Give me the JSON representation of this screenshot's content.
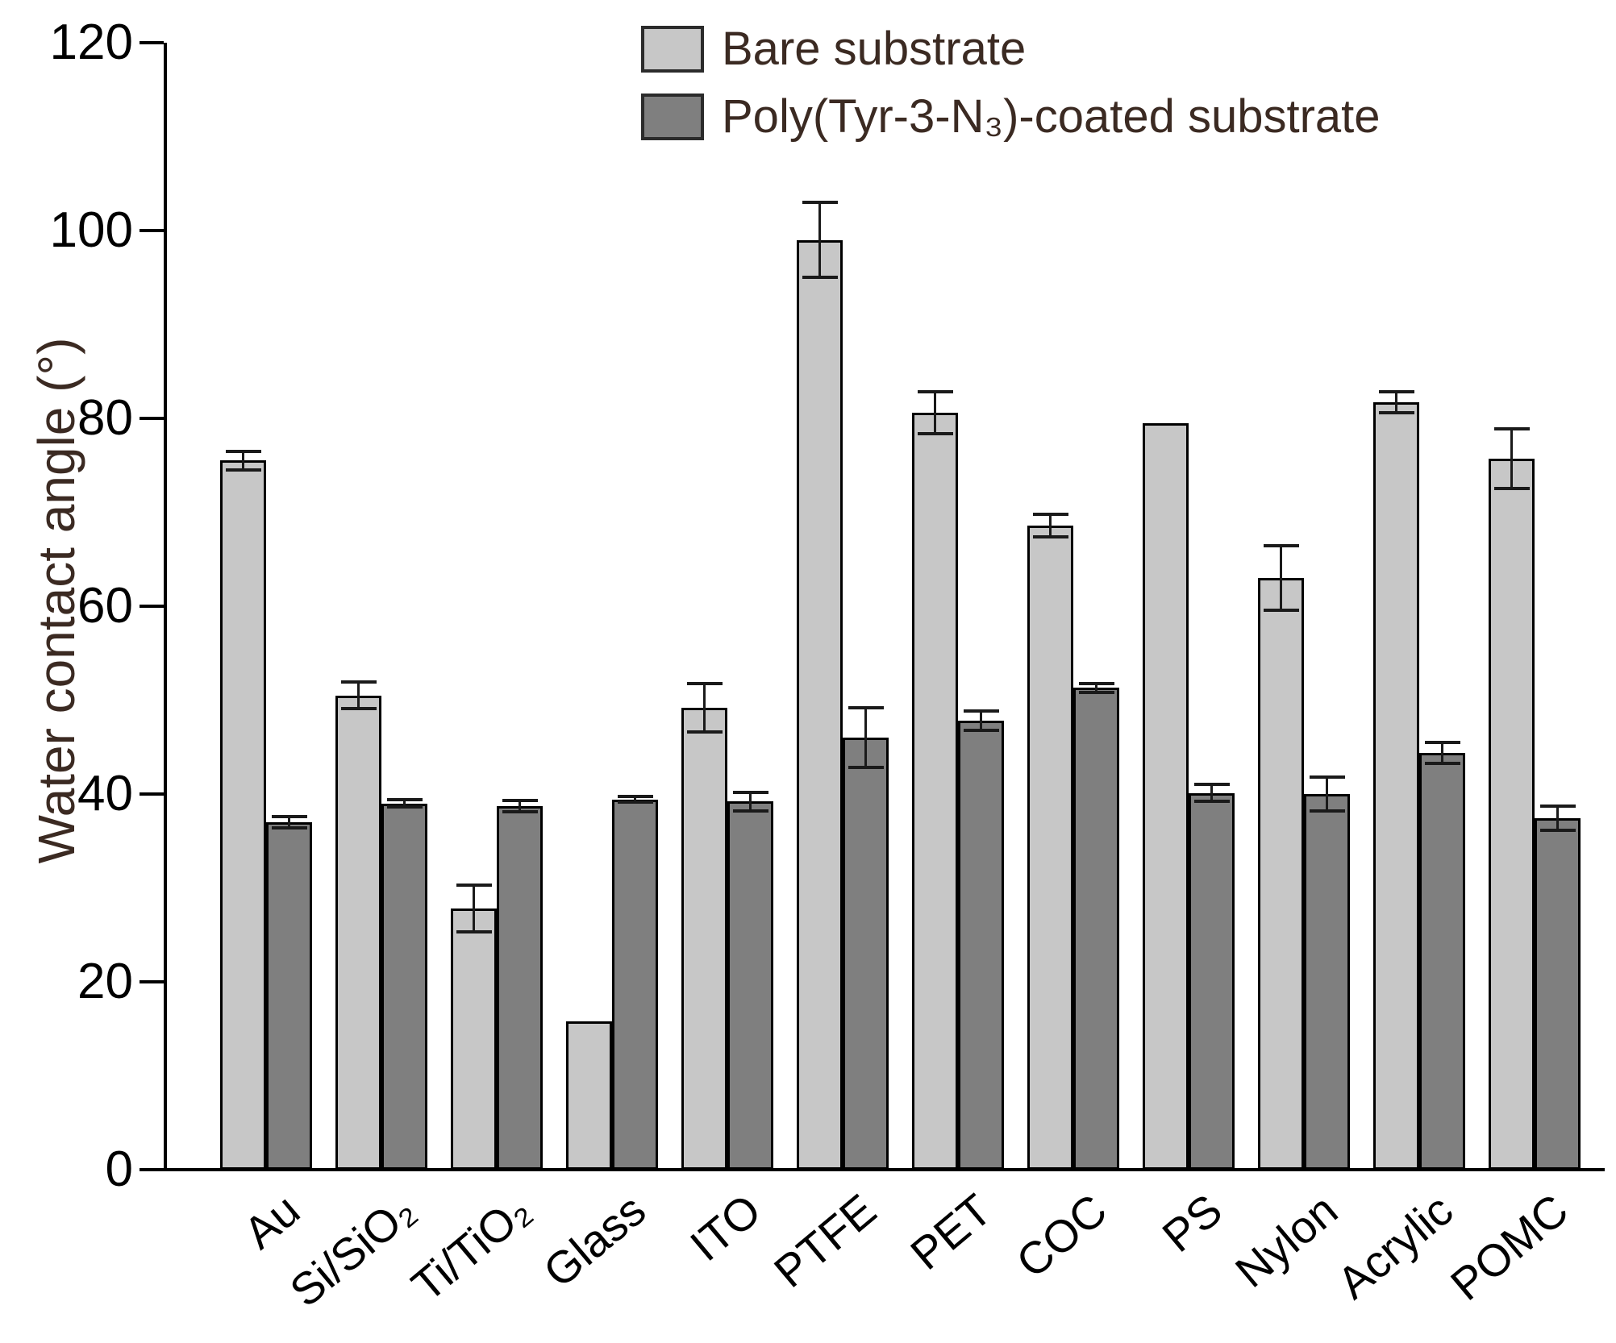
{
  "chart_data": {
    "type": "bar",
    "title": "",
    "xlabel": "",
    "ylabel": "Water contact angle (°)",
    "ylim": [
      0,
      120
    ],
    "yticks": [
      0,
      20,
      40,
      60,
      80,
      100,
      120
    ],
    "grid": false,
    "legend_position": "top-center",
    "categories": [
      "Au",
      "Si/SiO₂",
      "Ti/TiO₂",
      "Glass",
      "ITO",
      "PTFE",
      "PET",
      "COC",
      "PS",
      "Nylon",
      "Acrylic",
      "POMC"
    ],
    "series": [
      {
        "name": "Bare substrate",
        "color": "#c7c7c7",
        "values": [
          75.5,
          50.5,
          27.8,
          15.8,
          49.2,
          99.0,
          80.6,
          68.6,
          79.5,
          63.0,
          81.7,
          75.7
        ],
        "errors": [
          1.0,
          1.4,
          2.5,
          0,
          2.6,
          4.0,
          2.2,
          1.2,
          0,
          3.4,
          1.1,
          3.2
        ]
      },
      {
        "name": "Poly(Tyr-3-N₃)-coated substrate",
        "color": "#7f7f7f",
        "values": [
          37.0,
          39.0,
          38.7,
          39.4,
          39.2,
          46.0,
          47.8,
          51.3,
          40.1,
          40.0,
          44.4,
          37.4
        ],
        "errors": [
          0.6,
          0.4,
          0.6,
          0.3,
          1.0,
          3.2,
          1.0,
          0.5,
          0.9,
          1.8,
          1.1,
          1.3
        ]
      }
    ],
    "colors": {
      "bar_outline": "#000000",
      "error_bar": "#1a1a1a",
      "axis": "#000000",
      "tick_text": "#000000",
      "axis_title_text": "#3b2a22",
      "legend_text": "#3b2a22",
      "background": "#ffffff"
    }
  }
}
